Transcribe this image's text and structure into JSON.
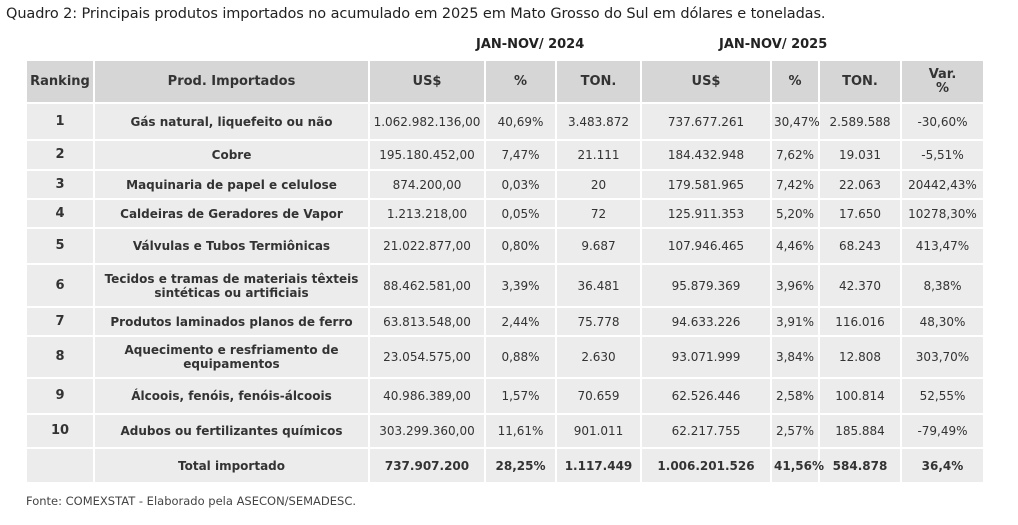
{
  "header": {
    "title": "Quadro 2: Principais produtos importados no acumulado em 2025 em Mato Grosso do Sul em dólares e toneladas."
  },
  "table": {
    "groups": [
      "JAN-NOV/ 2024",
      "JAN-NOV/ 2025"
    ],
    "columns": [
      "Ranking",
      "Prod. Importados",
      "US$",
      "%",
      "TON.",
      "US$",
      "%",
      "TON.",
      "Var.\n%"
    ],
    "rows": [
      [
        "1",
        "Gás natural, liquefeito ou não",
        "1.062.982.136,00",
        "40,69%",
        "3.483.872",
        "737.677.261",
        "30,47%",
        "2.589.588",
        "-30,60%"
      ],
      [
        "2",
        "Cobre",
        "195.180.452,00",
        "7,47%",
        "21.111",
        "184.432.948",
        "7,62%",
        "19.031",
        "-5,51%"
      ],
      [
        "3",
        "Maquinaria de papel e celulose",
        "874.200,00",
        "0,03%",
        "20",
        "179.581.965",
        "7,42%",
        "22.063",
        "20442,43%"
      ],
      [
        "4",
        "Caldeiras de Geradores de Vapor",
        "1.213.218,00",
        "0,05%",
        "72",
        "125.911.353",
        "5,20%",
        "17.650",
        "10278,30%"
      ],
      [
        "5",
        "Válvulas e Tubos Termiônicas",
        "21.022.877,00",
        "0,80%",
        "9.687",
        "107.946.465",
        "4,46%",
        "68.243",
        "413,47%"
      ],
      [
        "6",
        "Tecidos e tramas de materiais têxteis sintéticas ou artificiais",
        "88.462.581,00",
        "3,39%",
        "36.481",
        "95.879.369",
        "3,96%",
        "42.370",
        "8,38%"
      ],
      [
        "7",
        "Produtos laminados planos de ferro",
        "63.813.548,00",
        "2,44%",
        "75.778",
        "94.633.226",
        "3,91%",
        "116.016",
        "48,30%"
      ],
      [
        "8",
        "Aquecimento e resfriamento de equipamentos",
        "23.054.575,00",
        "0,88%",
        "2.630",
        "93.071.999",
        "3,84%",
        "12.808",
        "303,70%"
      ],
      [
        "9",
        "Álcoois, fenóis, fenóis-álcoois",
        "40.986.389,00",
        "1,57%",
        "70.659",
        "62.526.446",
        "2,58%",
        "100.814",
        "52,55%"
      ],
      [
        "10",
        "Adubos ou fertilizantes químicos",
        "303.299.360,00",
        "11,61%",
        "901.011",
        "62.217.755",
        "2,57%",
        "185.884",
        "-79,49%"
      ]
    ],
    "total": {
      "label": "Total importado",
      "values": [
        "737.907.200",
        "28,25%",
        "1.117.449",
        "1.006.201.526",
        "41,56%",
        "584.878",
        "36,4%"
      ]
    }
  },
  "footer": {
    "source": "Fonte: COMEXSTAT - Elaborado pela ASECON/SEMADESC."
  }
}
